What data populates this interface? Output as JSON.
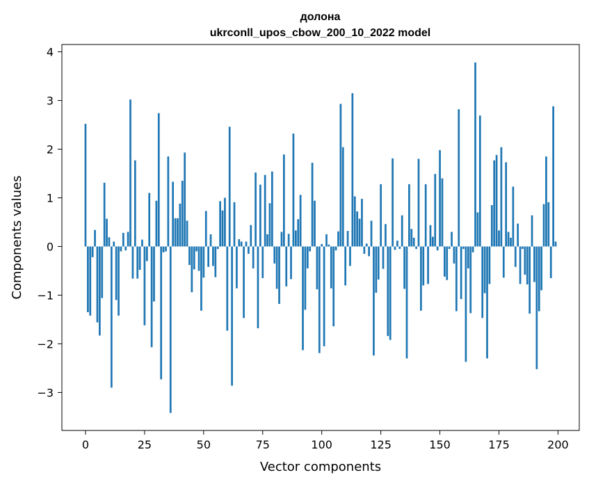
{
  "chart_data": {
    "type": "bar",
    "title": "долона",
    "subtitle": "ukrconll_upos_cbow_200_10_2022 model",
    "xlabel": "Vector components",
    "ylabel": "Components values",
    "xlim": [
      -10,
      209
    ],
    "ylim": [
      -3.78,
      4.15
    ],
    "xticks": [
      0,
      25,
      50,
      75,
      100,
      125,
      150,
      175,
      200
    ],
    "yticks": [
      -3,
      -2,
      -1,
      0,
      1,
      2,
      3,
      4
    ],
    "xtick_labels": [
      "0",
      "25",
      "50",
      "75",
      "100",
      "125",
      "150",
      "175",
      "200"
    ],
    "ytick_labels": [
      "−3",
      "−2",
      "−1",
      "0",
      "1",
      "2",
      "3",
      "4"
    ],
    "grid": false,
    "bar_color": "#1f77b4",
    "values": [
      2.52,
      -1.35,
      -1.42,
      -0.22,
      0.34,
      -1.56,
      -1.83,
      -1.06,
      1.31,
      0.57,
      0.19,
      -2.9,
      0.1,
      -1.1,
      -1.42,
      -0.1,
      0.28,
      -0.08,
      0.3,
      3.02,
      -0.66,
      1.77,
      -0.66,
      -0.48,
      0.14,
      -1.62,
      -0.3,
      1.1,
      -2.07,
      -1.13,
      0.94,
      2.74,
      -2.73,
      -0.12,
      -0.1,
      1.85,
      -3.42,
      1.33,
      0.58,
      0.58,
      0.88,
      1.35,
      1.93,
      0.53,
      -0.38,
      -0.94,
      -0.47,
      -0.1,
      -0.5,
      -1.32,
      -0.64,
      0.73,
      -0.42,
      0.25,
      -0.4,
      -0.63,
      -0.05,
      0.93,
      0.74,
      1.0,
      -1.73,
      2.46,
      -2.86,
      0.91,
      -0.86,
      0.15,
      0.1,
      -1.47,
      0.1,
      -0.15,
      0.44,
      -0.45,
      1.52,
      -1.68,
      1.27,
      -0.65,
      1.47,
      0.25,
      0.89,
      1.54,
      -0.35,
      -0.87,
      -1.18,
      0.3,
      1.89,
      -0.82,
      0.26,
      -0.67,
      2.32,
      0.33,
      0.56,
      1.06,
      -2.13,
      -1.3,
      -0.45,
      -0.1,
      1.72,
      0.94,
      -0.88,
      -2.19,
      0.05,
      -2.05,
      0.25,
      0.04,
      -0.86,
      -1.64,
      -0.08,
      0.31,
      2.93,
      2.04,
      -0.8,
      0.32,
      -0.4,
      3.15,
      1.03,
      0.72,
      0.57,
      0.98,
      -0.15,
      0.06,
      -0.2,
      0.53,
      -2.24,
      -0.95,
      -0.68,
      1.28,
      -0.46,
      0.46,
      -1.84,
      -1.92,
      1.81,
      -0.07,
      0.12,
      -0.05,
      0.64,
      -0.87,
      -2.3,
      1.28,
      0.36,
      0.18,
      -0.05,
      1.8,
      -1.32,
      -0.8,
      1.28,
      -0.77,
      0.44,
      0.2,
      1.49,
      -0.08,
      1.98,
      1.4,
      -0.62,
      -0.69,
      -0.05,
      0.3,
      -0.35,
      -1.33,
      2.82,
      -1.08,
      -0.05,
      -2.37,
      -0.45,
      -1.37,
      -0.12,
      3.78,
      0.7,
      2.69,
      -1.47,
      -0.96,
      -2.3,
      -0.77,
      0.85,
      1.77,
      1.88,
      0.33,
      2.04,
      -0.64,
      1.73,
      0.3,
      0.18,
      1.23,
      -0.42,
      0.47,
      -0.77,
      -0.05,
      -0.58,
      -0.78,
      -1.38,
      0.64,
      -0.73,
      -2.52,
      -1.33,
      -0.9,
      0.87,
      1.85,
      0.91,
      -0.65,
      2.88,
      0.1
    ]
  }
}
